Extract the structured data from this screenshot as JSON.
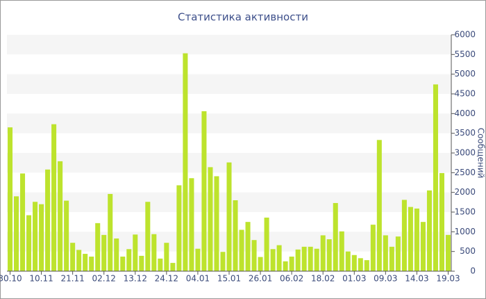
{
  "chart_data": {
    "type": "bar",
    "title": "Статистика активности",
    "y_label": "Сообщений",
    "categories": [
      "30.10",
      null,
      null,
      null,
      null,
      "10.11",
      null,
      null,
      null,
      null,
      "21.11",
      null,
      null,
      null,
      null,
      "02.12",
      null,
      null,
      null,
      null,
      "13.12",
      null,
      null,
      null,
      null,
      "24.12",
      null,
      null,
      null,
      null,
      "04.01",
      null,
      null,
      null,
      null,
      "15.01",
      null,
      null,
      null,
      null,
      "26.01",
      null,
      null,
      null,
      null,
      "06.02",
      null,
      null,
      null,
      null,
      "18.02",
      null,
      null,
      null,
      null,
      "01.03",
      null,
      null,
      null,
      null,
      "09.03",
      null,
      null,
      null,
      null,
      "14.03",
      null,
      null,
      null,
      null,
      "19.03"
    ],
    "values": [
      3650,
      1900,
      2480,
      1420,
      1760,
      1700,
      2580,
      3730,
      2790,
      1790,
      720,
      540,
      440,
      370,
      1220,
      920,
      1960,
      830,
      370,
      560,
      930,
      390,
      1760,
      940,
      320,
      720,
      210,
      2180,
      5530,
      2360,
      570,
      4060,
      2640,
      2410,
      490,
      2760,
      1800,
      1050,
      1250,
      790,
      360,
      1360,
      560,
      660,
      250,
      370,
      550,
      620,
      620,
      570,
      910,
      810,
      1730,
      1010,
      500,
      410,
      330,
      280,
      1180,
      3330,
      910,
      620,
      880,
      1810,
      1630,
      1590,
      1250,
      2050,
      4740,
      2490,
      920
    ],
    "color": "#bde32d",
    "ylim": [
      0,
      6000
    ],
    "yticks": [
      0,
      500,
      1000,
      1500,
      2000,
      2500,
      3000,
      3500,
      4000,
      4500,
      5000,
      5500,
      6000
    ],
    "grid": "bands",
    "y_axis_side": "right"
  }
}
